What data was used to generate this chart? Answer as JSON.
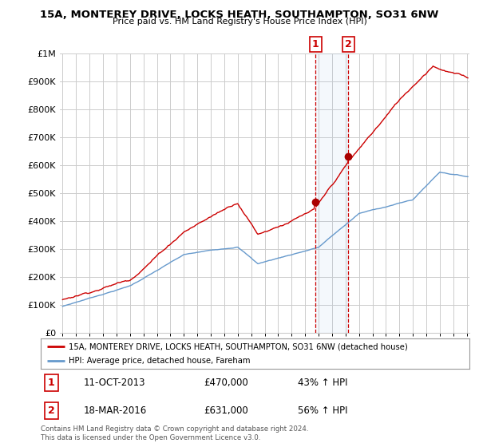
{
  "title": "15A, MONTEREY DRIVE, LOCKS HEATH, SOUTHAMPTON, SO31 6NW",
  "subtitle": "Price paid vs. HM Land Registry's House Price Index (HPI)",
  "red_line_color": "#cc0000",
  "blue_line_color": "#6699cc",
  "background_color": "#ffffff",
  "grid_color": "#cccccc",
  "purchase1": {
    "date_num": 2013.78,
    "price": 470000,
    "label": "1",
    "text": "11-OCT-2013",
    "amount": "£470,000",
    "hpi": "43% ↑ HPI"
  },
  "purchase2": {
    "date_num": 2016.22,
    "price": 631000,
    "label": "2",
    "text": "18-MAR-2016",
    "amount": "£631,000",
    "hpi": "56% ↑ HPI"
  },
  "legend_red": "15A, MONTEREY DRIVE, LOCKS HEATH, SOUTHAMPTON, SO31 6NW (detached house)",
  "legend_blue": "HPI: Average price, detached house, Fareham",
  "footer": "Contains HM Land Registry data © Crown copyright and database right 2024.\nThis data is licensed under the Open Government Licence v3.0.",
  "ylim": [
    0,
    1000000
  ],
  "xlim_start": 1994.8,
  "xlim_end": 2025.2
}
